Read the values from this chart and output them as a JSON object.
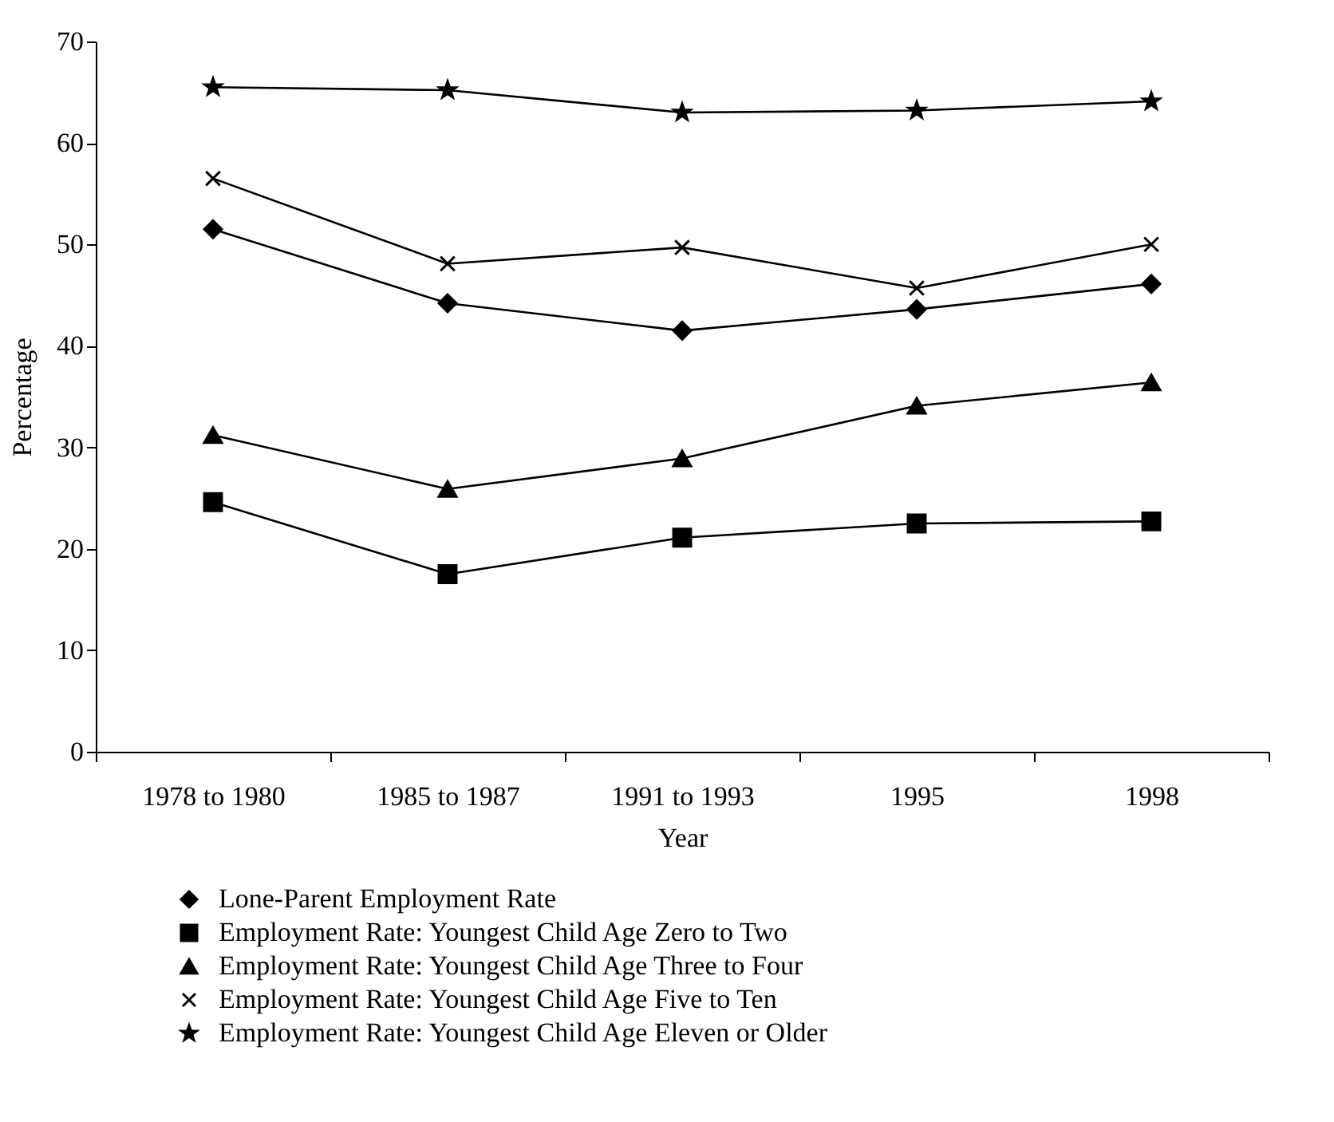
{
  "chart_data": {
    "type": "line",
    "xlabel": "Year",
    "ylabel": "Percentage",
    "categories": [
      "1978 to 1980",
      "1985 to 1987",
      "1991 to 1993",
      "1995",
      "1998"
    ],
    "series": [
      {
        "name": "Lone-Parent Employment Rate",
        "color": "#000000",
        "marker": "diamond",
        "values": [
          51.5,
          44.2,
          41.5,
          43.6,
          46.1
        ]
      },
      {
        "name": "Employment Rate: Youngest Child Age Zero to Two",
        "color": "#000000",
        "marker": "square",
        "values": [
          24.6,
          17.5,
          21.1,
          22.5,
          22.7
        ]
      },
      {
        "name": "Employment Rate: Youngest Child Age Three to Four",
        "color": "#000000",
        "marker": "triangle",
        "values": [
          31.2,
          25.9,
          28.9,
          34.1,
          36.4
        ]
      },
      {
        "name": "Employment Rate: Youngest Child Age Five to Ten",
        "color": "#000000",
        "marker": "cross",
        "values": [
          56.5,
          48.1,
          49.7,
          45.7,
          50.0
        ]
      },
      {
        "name": "Employment Rate: Youngest Child Age Eleven or Older",
        "color": "#000000",
        "marker": "star",
        "values": [
          65.5,
          65.2,
          63.0,
          63.2,
          64.1
        ]
      }
    ],
    "ylim": [
      0,
      70
    ],
    "yticks": [
      0,
      10,
      20,
      30,
      40,
      50,
      60,
      70
    ],
    "grid": false,
    "legend": "bottom",
    "line_style": "solid"
  }
}
